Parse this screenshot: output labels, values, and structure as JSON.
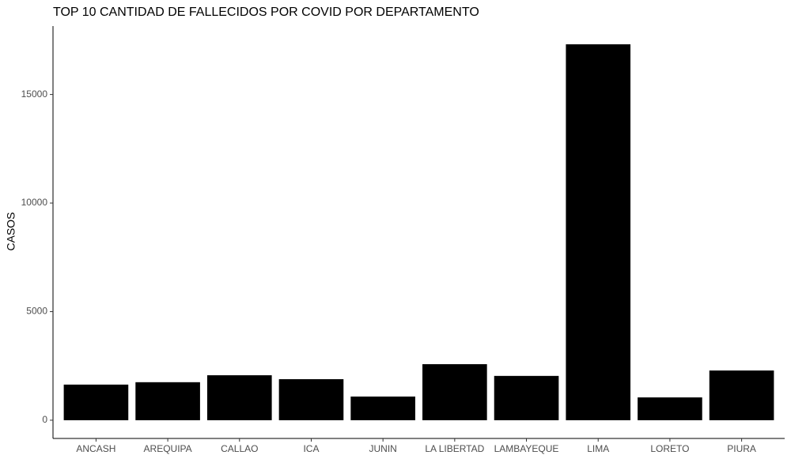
{
  "chart_data": {
    "type": "bar",
    "title": "TOP 10 CANTIDAD DE FALLECIDOS POR COVID POR DEPARTAMENTO",
    "y_label": "CASOS",
    "categories": [
      "ANCASH",
      "AREQUIPA",
      "CALLAO",
      "ICA",
      "JUNIN",
      "LA LIBERTAD",
      "LAMBAYEQUE",
      "LIMA",
      "LORETO",
      "PIURA"
    ],
    "values": [
      1640,
      1750,
      2070,
      1890,
      1090,
      2580,
      2040,
      17310,
      1050,
      2290
    ],
    "color": "#000000",
    "ylim": [
      -840,
      18150
    ],
    "yticks": [
      0,
      5000,
      10000,
      15000
    ],
    "grid": false
  }
}
